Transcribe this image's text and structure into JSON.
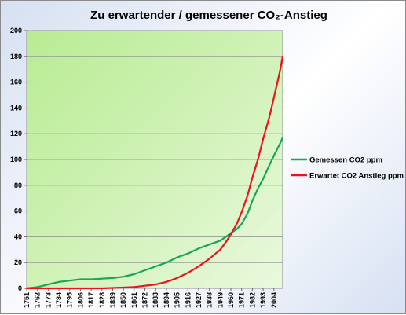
{
  "chart_data": {
    "type": "line",
    "title": "Zu erwartender / gemessener CO₂-Anstieg",
    "xlabel": "",
    "ylabel": "",
    "ylim": [
      0,
      200
    ],
    "y_ticks": [
      0,
      20,
      40,
      60,
      80,
      100,
      120,
      140,
      160,
      180,
      200
    ],
    "xlim": [
      1751,
      2013
    ],
    "x_ticks": [
      1751,
      1762,
      1773,
      1784,
      1795,
      1806,
      1817,
      1828,
      1839,
      1850,
      1861,
      1872,
      1883,
      1894,
      1905,
      1916,
      1927,
      1938,
      1949,
      1960,
      1971,
      1982,
      1993,
      2004
    ],
    "grid": "horizontal",
    "legend_position": "right",
    "plot_background": "green-gradient",
    "series": [
      {
        "name": "Gemessen CO2 ppm",
        "color": "#19a657",
        "x": [
          1751,
          1762,
          1773,
          1784,
          1795,
          1806,
          1817,
          1828,
          1839,
          1850,
          1861,
          1872,
          1883,
          1894,
          1905,
          1916,
          1927,
          1938,
          1949,
          1955,
          1960,
          1966,
          1971,
          1977,
          1982,
          1988,
          1993,
          1999,
          2004,
          2010,
          2013
        ],
        "y": [
          0,
          1,
          3,
          5,
          6,
          7,
          7,
          7.5,
          8,
          9,
          11,
          14,
          17,
          20,
          24,
          27,
          31,
          34,
          37,
          40,
          43,
          46,
          50,
          58,
          68,
          78,
          85,
          95,
          103,
          112,
          117
        ]
      },
      {
        "name": "Erwartet CO2 Anstieg ppm",
        "color": "#e8151b",
        "x": [
          1751,
          1762,
          1773,
          1784,
          1795,
          1806,
          1817,
          1828,
          1839,
          1850,
          1861,
          1872,
          1883,
          1894,
          1905,
          1916,
          1927,
          1938,
          1949,
          1955,
          1960,
          1966,
          1971,
          1977,
          1982,
          1988,
          1993,
          1999,
          2004,
          2010,
          2013
        ],
        "y": [
          0,
          0,
          0,
          0,
          0,
          0,
          0,
          0,
          0.3,
          0.6,
          1,
          2,
          3,
          5,
          8,
          12,
          17,
          23,
          30,
          36,
          42,
          50,
          59,
          72,
          86,
          101,
          116,
          132,
          148,
          168,
          180
        ]
      }
    ]
  }
}
